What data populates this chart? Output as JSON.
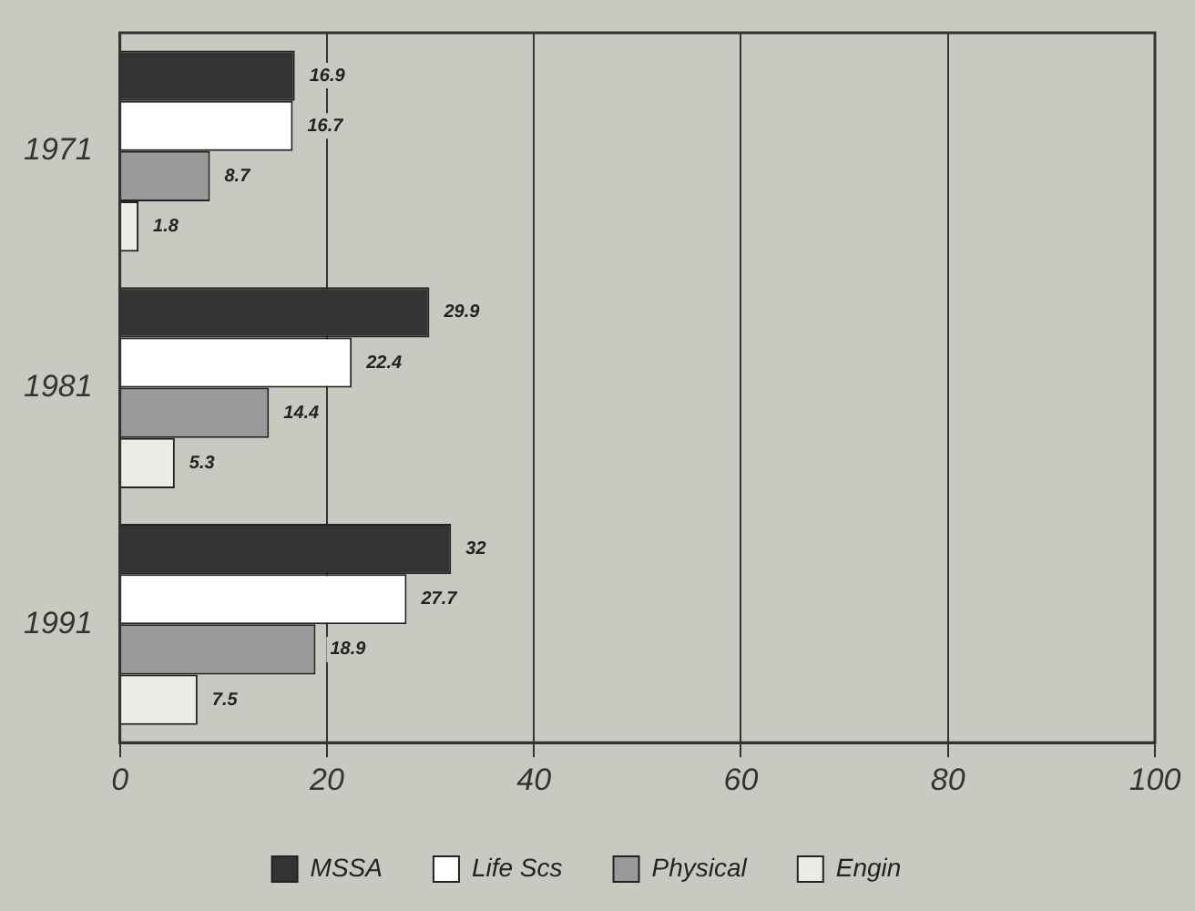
{
  "chart_data": {
    "type": "bar",
    "orientation": "horizontal",
    "categories": [
      "1971",
      "1981",
      "1991"
    ],
    "series": [
      {
        "name": "MSSA",
        "color": "#333333",
        "values": [
          16.9,
          29.9,
          32
        ]
      },
      {
        "name": "Life Scs",
        "color": "#ffffff",
        "values": [
          16.7,
          22.4,
          27.7
        ]
      },
      {
        "name": "Physical",
        "color": "#999999",
        "values": [
          8.7,
          14.4,
          18.9
        ]
      },
      {
        "name": "Engin",
        "color": "#ecece6",
        "values": [
          1.8,
          5.3,
          7.5
        ]
      }
    ],
    "xlim": [
      0,
      100
    ],
    "xticks": [
      0,
      20,
      40,
      60,
      80,
      100
    ],
    "grid": "x",
    "legend": "bottom",
    "data_labels": true
  }
}
